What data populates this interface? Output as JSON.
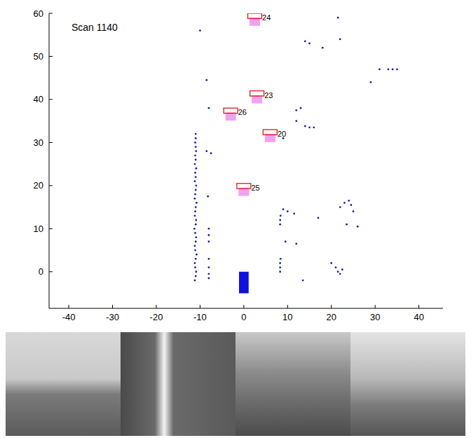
{
  "chart_data": {
    "type": "scatter",
    "annotation": "Scan 1140",
    "color": "#1c1ca8",
    "marker": "dot",
    "xlim": [
      -44.5,
      45.5
    ],
    "ylim": [
      -8.5,
      60
    ],
    "xticks": [
      -40,
      -30,
      -20,
      -10,
      0,
      10,
      20,
      30,
      40
    ],
    "yticks": [
      0,
      10,
      20,
      30,
      40,
      50,
      60
    ],
    "x": [
      -11.2,
      -11.0,
      -10.9,
      -11.1,
      -11.2,
      -11.0,
      -10.8,
      -11.1,
      -11.2,
      -11.0,
      -10.9,
      -11.1,
      -11.3,
      -11.0,
      -10.9,
      -11.2,
      -11.1,
      -11.0,
      -10.8,
      -11.2,
      -11.1,
      -11.0,
      -10.9,
      -11.2,
      -11.0,
      -11.1,
      -10.9,
      -11.2,
      -11.0,
      -11.1,
      -10.9,
      -11.0,
      -11.1,
      -11.0,
      -11.0,
      -8.0,
      -8.0,
      -8.0,
      -8.0,
      -8.0,
      -8.0,
      -8.0,
      -8.2,
      -8.5,
      -7.5,
      -8.0,
      -8.5,
      -10.0,
      8.3,
      8.3,
      8.3,
      8.4,
      8.3,
      8.3,
      8.4,
      9.0,
      10.0,
      11.5,
      9.5,
      12.0,
      12.0,
      13.0,
      12.0,
      14.0,
      15.0,
      16.0,
      9.0,
      17.0,
      22.0,
      23.0,
      24.0,
      24.5,
      25.0,
      23.5,
      20.0,
      21.0,
      21.5,
      22.0,
      22.5,
      13.5,
      14.0,
      15.0,
      18.0,
      21.5,
      22.0,
      31.0,
      33.0,
      34.0,
      35.0,
      29.0,
      26.0
    ],
    "y": [
      -2,
      -1,
      0,
      1,
      2,
      3,
      4,
      5,
      6,
      7,
      8,
      9,
      10,
      11,
      12,
      13,
      14,
      15,
      16,
      17,
      18,
      19,
      20,
      21,
      22,
      23,
      24,
      25,
      26,
      27,
      28,
      29,
      30,
      31,
      32,
      -1.5,
      -0.5,
      1,
      3,
      7,
      8.5,
      10,
      17.5,
      28,
      27.5,
      38,
      44.5,
      56,
      0,
      1,
      2,
      3,
      11,
      12,
      13,
      14.5,
      14,
      13.5,
      7,
      6.5,
      37.5,
      38,
      35,
      33.8,
      33.5,
      33.5,
      31,
      12.5,
      15,
      16,
      16.5,
      15.5,
      14,
      11,
      2,
      1,
      0,
      -0.5,
      0.5,
      -2,
      53.5,
      53,
      52,
      59,
      54,
      47,
      47,
      47,
      47,
      44,
      10.5
    ],
    "tracks": {
      "labels": [
        "24",
        "23",
        "26",
        "20",
        "25"
      ],
      "x": [
        2.5,
        3,
        -3,
        6,
        0
      ],
      "y": [
        59,
        41,
        37,
        32,
        19.5
      ],
      "color": "#e01818"
    },
    "vehicle": {
      "x": 0,
      "y": -2.5,
      "color": "#1010e0"
    }
  }
}
